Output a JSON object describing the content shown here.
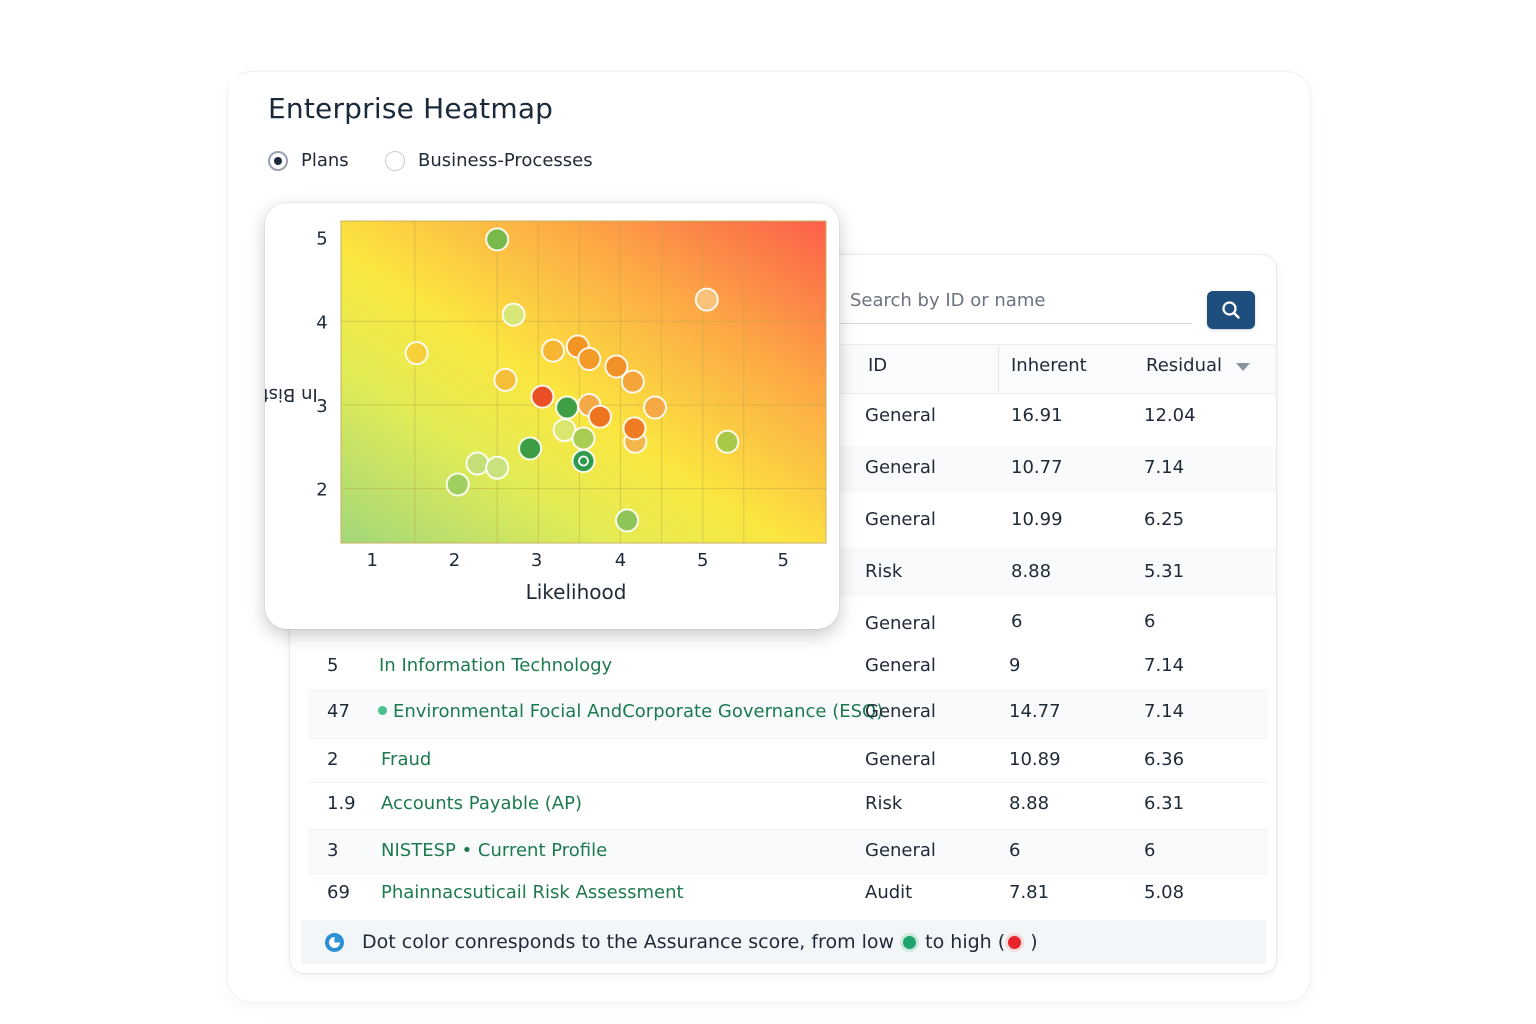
{
  "page": {
    "title": "Enterprise Heatmap"
  },
  "view_toggle": {
    "options": [
      {
        "label": "Plans",
        "selected": true
      },
      {
        "label": "Business-Processes",
        "selected": false
      }
    ]
  },
  "search": {
    "placeholder": "Search by ID or name",
    "value": "",
    "icon": "search-icon"
  },
  "table": {
    "columns": {
      "id": "ID",
      "inherent": "Inherent",
      "residual": "Residual",
      "sort_icon": "sort-descending-icon"
    },
    "top_rows": [
      {
        "type": "General",
        "inherent": "16.91",
        "residual": "12.04"
      },
      {
        "type": "General",
        "inherent": "10.77",
        "residual": "7.14"
      },
      {
        "type": "General",
        "inherent": "10.99",
        "residual": "6.25"
      },
      {
        "type": "Risk",
        "inherent": "8.88",
        "residual": "5.31"
      },
      {
        "type": "General",
        "inherent": "6",
        "residual": "6"
      }
    ],
    "rows": [
      {
        "id": "5",
        "name": "In Information Technology",
        "type": "General",
        "inherent": "9",
        "residual": "7.14"
      },
      {
        "id": "47",
        "name": "Environmental Focial AndCorporate Governance (ESQ)",
        "type": "General",
        "inherent": "14.77",
        "residual": "7.14"
      },
      {
        "id": "2",
        "name": "Fraud",
        "type": "General",
        "inherent": "10.89",
        "residual": "6.36"
      },
      {
        "id": "1.9",
        "name": "Accounts Payable (AP)",
        "type": "Risk",
        "inherent": "8.88",
        "residual": "6.31"
      },
      {
        "id": "3",
        "name": "NISTESP • Current Profile",
        "type": "General",
        "inherent": "6",
        "residual": "6"
      },
      {
        "id": "69",
        "name": "Phainnacsuticail Risk Assessment",
        "type": "Audit",
        "inherent": "7.81",
        "residual": "5.08"
      }
    ]
  },
  "legend_note": {
    "icon": "info-icon",
    "before": "Dot color conresponds to the Assurance score, from low",
    "middle": "to high (",
    "after": ")",
    "low_color": "#1fa36e",
    "high_color": "#e8242c"
  },
  "chart_data": {
    "type": "scatter",
    "xlabel": "Likelihood",
    "ylabel": "In Bisf",
    "x_ticks": [
      "1",
      "2",
      "3",
      "4",
      "5",
      "5"
    ],
    "y_ticks": [
      "5",
      "4",
      "3",
      "2"
    ],
    "xlim": [
      0.6,
      6.5
    ],
    "ylim": [
      1.35,
      5.2
    ],
    "background": "gradient green (low) to red (high)",
    "points": [
      {
        "x": 2.5,
        "y": 4.98,
        "color": "#79b84a"
      },
      {
        "x": 5.05,
        "y": 4.26,
        "color": "#f9c27a"
      },
      {
        "x": 2.7,
        "y": 4.08,
        "color": "#d7e879"
      },
      {
        "x": 1.52,
        "y": 3.62,
        "color": "#f7cf3a"
      },
      {
        "x": 3.18,
        "y": 3.65,
        "color": "#f6b632"
      },
      {
        "x": 3.48,
        "y": 3.7,
        "color": "#f29522"
      },
      {
        "x": 3.62,
        "y": 3.55,
        "color": "#f39a28"
      },
      {
        "x": 3.95,
        "y": 3.46,
        "color": "#f29028"
      },
      {
        "x": 4.15,
        "y": 3.28,
        "color": "#f5a43a"
      },
      {
        "x": 2.6,
        "y": 3.3,
        "color": "#f6be38"
      },
      {
        "x": 3.05,
        "y": 3.1,
        "color": "#ea4e25"
      },
      {
        "x": 3.62,
        "y": 3.0,
        "color": "#f4a846"
      },
      {
        "x": 4.42,
        "y": 2.97,
        "color": "#f5a843"
      },
      {
        "x": 3.75,
        "y": 2.86,
        "color": "#ee7520"
      },
      {
        "x": 3.35,
        "y": 2.97,
        "color": "#3e9f44"
      },
      {
        "x": 4.18,
        "y": 2.56,
        "color": "#f3b64a"
      },
      {
        "x": 4.17,
        "y": 2.72,
        "color": "#ef7b22"
      },
      {
        "x": 3.32,
        "y": 2.7,
        "color": "#dbe66e"
      },
      {
        "x": 3.55,
        "y": 2.6,
        "color": "#a9cc52"
      },
      {
        "x": 2.9,
        "y": 2.48,
        "color": "#3d9d45"
      },
      {
        "x": 5.3,
        "y": 2.56,
        "color": "#a7c947"
      },
      {
        "x": 2.26,
        "y": 2.3,
        "color": "#c4df78"
      },
      {
        "x": 2.5,
        "y": 2.25,
        "color": "#c9e27e"
      },
      {
        "x": 3.55,
        "y": 2.33,
        "color": "#2e9a4c",
        "ring": true
      },
      {
        "x": 2.02,
        "y": 2.05,
        "color": "#9fcf5e"
      },
      {
        "x": 4.08,
        "y": 1.62,
        "color": "#8fc458"
      }
    ]
  }
}
